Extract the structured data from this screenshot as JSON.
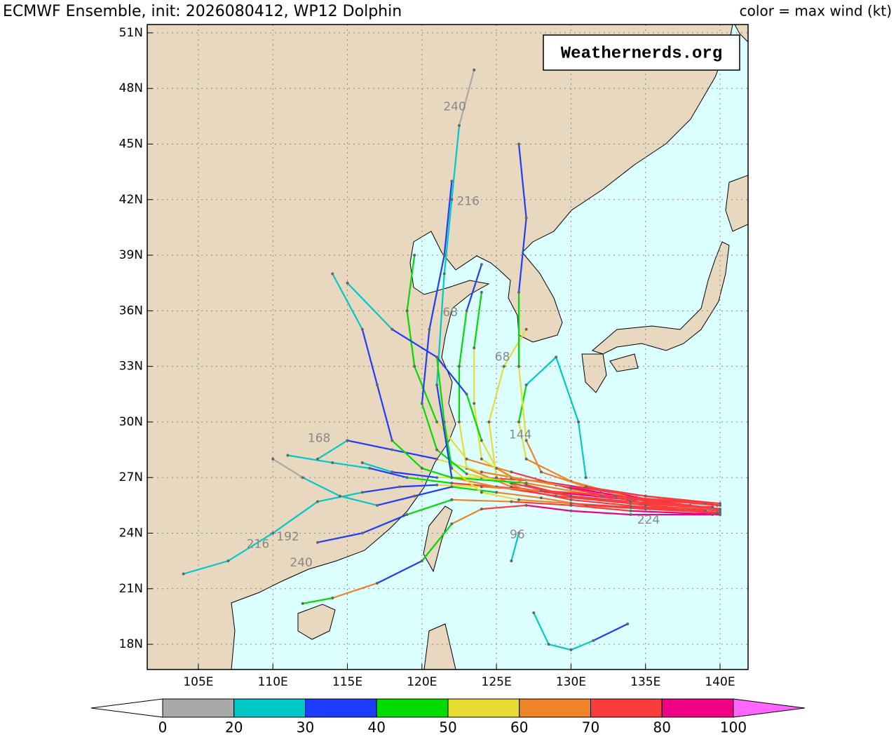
{
  "chart_data": {
    "type": "track-map",
    "title": "ECMWF Ensemble, init: 2026080412, WP12 Dolphin",
    "subtitle": "color = max wind (kt)",
    "watermark": "Weathernerds.org",
    "xlim": [
      101.57,
      141.88
    ],
    "ylim": [
      16.64,
      51.45
    ],
    "xticks": [
      {
        "value": 105,
        "label": "105E"
      },
      {
        "value": 110,
        "label": "110E"
      },
      {
        "value": 115,
        "label": "115E"
      },
      {
        "value": 120,
        "label": "120E"
      },
      {
        "value": 125,
        "label": "125E"
      },
      {
        "value": 130,
        "label": "130E"
      },
      {
        "value": 135,
        "label": "135E"
      },
      {
        "value": 140,
        "label": "140E"
      }
    ],
    "yticks": [
      {
        "value": 18,
        "label": "18N"
      },
      {
        "value": 21,
        "label": "21N"
      },
      {
        "value": 24,
        "label": "24N"
      },
      {
        "value": 27,
        "label": "27N"
      },
      {
        "value": 30,
        "label": "30N"
      },
      {
        "value": 33,
        "label": "33N"
      },
      {
        "value": 36,
        "label": "36N"
      },
      {
        "value": 39,
        "label": "39N"
      },
      {
        "value": 42,
        "label": "42N"
      },
      {
        "value": 45,
        "label": "45N"
      },
      {
        "value": 48,
        "label": "48N"
      },
      {
        "value": 51,
        "label": "51N"
      }
    ],
    "grid": true,
    "colorbar": {
      "levels": [
        0,
        20,
        30,
        40,
        50,
        60,
        70,
        80,
        100
      ],
      "colors": [
        "#a9a9a9",
        "#00c8c8",
        "#1e3cff",
        "#00dc00",
        "#e6dc32",
        "#f08228",
        "#fa3c3c",
        "#f00082"
      ],
      "under_color": "#ffffff",
      "over_color": "#ff66ff"
    },
    "tracks": [
      {
        "lon": [
          140,
          136,
          132,
          128,
          124,
          121,
          118,
          116
        ],
        "lat": [
          25.3,
          25.7,
          26.3,
          26.8,
          27,
          27,
          27.3,
          27.8
        ],
        "wind": [
          65,
          75,
          85,
          80,
          75,
          55,
          35,
          25
        ]
      },
      {
        "lon": [
          140,
          135,
          130,
          126,
          123,
          122.5,
          122.5,
          123,
          124
        ],
        "lat": [
          25,
          25.5,
          26,
          26.5,
          27.5,
          30,
          33,
          36,
          38.5
        ],
        "wind": [
          70,
          78,
          80,
          75,
          65,
          55,
          45,
          40,
          35
        ]
      },
      {
        "lon": [
          140,
          135,
          130,
          127,
          125,
          124.5,
          125.5,
          127
        ],
        "lat": [
          25.1,
          25.4,
          25.8,
          26.3,
          27,
          30,
          33,
          35
        ],
        "wind": [
          60,
          70,
          70,
          70,
          65,
          55,
          55,
          50
        ]
      },
      {
        "lon": [
          139.5,
          134,
          129,
          125,
          122,
          119,
          116.5,
          114,
          111
        ],
        "lat": [
          25.6,
          25.8,
          26.2,
          26.5,
          26.7,
          27,
          27.5,
          27.8,
          28.2
        ],
        "wind": [
          75,
          80,
          85,
          82,
          70,
          40,
          30,
          25,
          20
        ]
      },
      {
        "lon": [
          140,
          134,
          130,
          126,
          122,
          119,
          116,
          113
        ],
        "lat": [
          25,
          25.2,
          25.5,
          25.7,
          25.8,
          25,
          24,
          23.5
        ],
        "wind": [
          70,
          80,
          78,
          72,
          60,
          45,
          35,
          30
        ]
      },
      {
        "lon": [
          139.8,
          135,
          130,
          126,
          123,
          121,
          119.5,
          119,
          119.5
        ],
        "lat": [
          25.3,
          25.6,
          26.4,
          27.3,
          28,
          30,
          33,
          36,
          39
        ],
        "wind": [
          60,
          70,
          75,
          72,
          60,
          50,
          45,
          42,
          40
        ]
      },
      {
        "lon": [
          140,
          135,
          130,
          127,
          126.5,
          127,
          129,
          130.5,
          131
        ],
        "lat": [
          25.3,
          25.7,
          26.8,
          28,
          30,
          32,
          33.5,
          30,
          27
        ],
        "wind": [
          65,
          70,
          68,
          62,
          55,
          40,
          25,
          22,
          20
        ]
      },
      {
        "lon": [
          139.8,
          134,
          129,
          124,
          121,
          118,
          115,
          113
        ],
        "lat": [
          25.5,
          25.9,
          26.6,
          27.3,
          28,
          28.5,
          29,
          28
        ],
        "wind": [
          70,
          78,
          80,
          68,
          55,
          35,
          30,
          25
        ]
      },
      {
        "lon": [
          139.5,
          134,
          129,
          125,
          122,
          120,
          118,
          117,
          116,
          114
        ],
        "lat": [
          25.4,
          25.6,
          26,
          26.5,
          27,
          27.5,
          29,
          32,
          35,
          38
        ],
        "wind": [
          65,
          75,
          78,
          72,
          60,
          45,
          40,
          35,
          32,
          25
        ]
      },
      {
        "lon": [
          140,
          135,
          130,
          126,
          124,
          123.5,
          123.5,
          124
        ],
        "lat": [
          25.5,
          26,
          26.5,
          27,
          28,
          31,
          34,
          37
        ],
        "wind": [
          70,
          75,
          70,
          62,
          55,
          52,
          50,
          45
        ]
      },
      {
        "lon": [
          139.5,
          134,
          130,
          127,
          124,
          122,
          120,
          117,
          114,
          112
        ],
        "lat": [
          25,
          25,
          25.2,
          25.5,
          25.3,
          24.5,
          22.5,
          21.3,
          20.5,
          20.2
        ],
        "wind": [
          75,
          85,
          85,
          80,
          70,
          65,
          40,
          30,
          60,
          45
        ]
      },
      {
        "lon": [
          140,
          135,
          130,
          126,
          123,
          121,
          120,
          120.5,
          121.5,
          122
        ],
        "lat": [
          25.2,
          25.5,
          26,
          26.7,
          27.2,
          28.5,
          31,
          35,
          39,
          43
        ],
        "wind": [
          68,
          78,
          78,
          72,
          55,
          45,
          40,
          35,
          32,
          30
        ]
      },
      {
        "lon": [
          138,
          132,
          127,
          122,
          121,
          121.5,
          122,
          122.5,
          123.5
        ],
        "lat": [
          25.5,
          26,
          26.7,
          27,
          32,
          38,
          42,
          46,
          49
        ],
        "wind": [
          60,
          70,
          65,
          45,
          35,
          28,
          22,
          20,
          15
        ]
      },
      {
        "lon": [
          139,
          133,
          128,
          124,
          121,
          118.5,
          116,
          113,
          110,
          107,
          104
        ],
        "lat": [
          25.6,
          26,
          26.3,
          26.5,
          26.6,
          26.5,
          26.2,
          25.7,
          24,
          22.5,
          21.8
        ],
        "wind": [
          70,
          75,
          72,
          65,
          50,
          38,
          32,
          28,
          25,
          22,
          20
        ]
      },
      {
        "lon": [
          133.8,
          131.5,
          130,
          128.5,
          127.5
        ],
        "lat": [
          19.1,
          18.2,
          17.7,
          18,
          19.7
        ],
        "wind": [
          32,
          32,
          28,
          25,
          25
        ]
      },
      {
        "lon": [
          126.5,
          126
        ],
        "lat": [
          24,
          22.5
        ],
        "wind": [
          25,
          25
        ]
      },
      {
        "lon": [
          139.5,
          134,
          130,
          127,
          125,
          124,
          123,
          121,
          118,
          115
        ],
        "lat": [
          25.4,
          25.7,
          26,
          26.6,
          27.5,
          29,
          31.5,
          33.5,
          35,
          37.5
        ],
        "wind": [
          70,
          78,
          78,
          70,
          65,
          55,
          45,
          35,
          30,
          25
        ]
      },
      {
        "lon": [
          139.8,
          135,
          131,
          128,
          125,
          122,
          119.5,
          117,
          114.5,
          112,
          110
        ],
        "lat": [
          25.1,
          25.3,
          25.5,
          25.9,
          26.2,
          26.5,
          26,
          25.5,
          26,
          27,
          28
        ],
        "wind": [
          68,
          72,
          70,
          68,
          60,
          45,
          35,
          30,
          25,
          20,
          15
        ]
      },
      {
        "lon": [
          140,
          135,
          131,
          128,
          127,
          126.5,
          126.5,
          127,
          126.5
        ],
        "lat": [
          25.6,
          26,
          26.5,
          27.3,
          29,
          33,
          37,
          41,
          45
        ],
        "wind": [
          72,
          75,
          70,
          65,
          60,
          52,
          40,
          35,
          32
        ]
      },
      {
        "lon": [
          139,
          134,
          130,
          126.5,
          124,
          122,
          121.5,
          121
        ],
        "lat": [
          25.2,
          25.4,
          25.6,
          25.8,
          26.2,
          27.5,
          30,
          33.5
        ],
        "wind": [
          62,
          72,
          70,
          65,
          58,
          52,
          48,
          45
        ]
      }
    ],
    "annotations": [
      {
        "text": "240",
        "lon": 122.2,
        "lat": 47.0
      },
      {
        "text": "216",
        "lon": 123.1,
        "lat": 41.9
      },
      {
        "text": "144",
        "lon": 126.6,
        "lat": 29.3
      },
      {
        "text": "96",
        "lon": 126.4,
        "lat": 23.9
      },
      {
        "text": "168",
        "lon": 113.1,
        "lat": 29.1
      },
      {
        "text": "240",
        "lon": 111.9,
        "lat": 22.4
      },
      {
        "text": "216",
        "lon": 109.0,
        "lat": 23.4
      },
      {
        "text": "192",
        "lon": 111.0,
        "lat": 23.8
      },
      {
        "text": "68",
        "lon": 121.9,
        "lat": 35.9
      },
      {
        "text": "68",
        "lon": 125.4,
        "lat": 33.5
      },
      {
        "text": "224",
        "lon": 135.2,
        "lat": 24.7
      }
    ]
  }
}
